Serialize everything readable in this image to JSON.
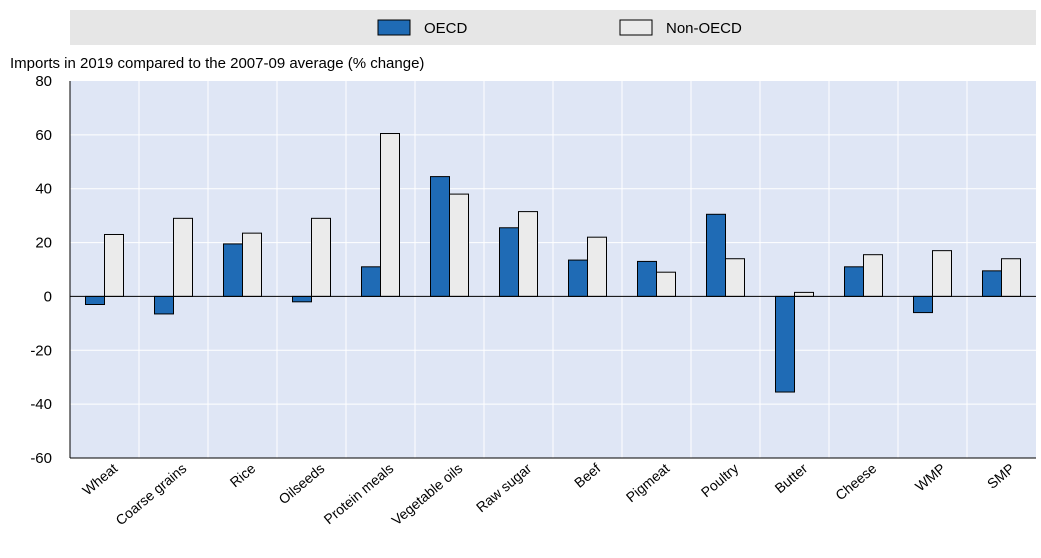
{
  "chart_data": {
    "type": "bar",
    "title": "",
    "ylabel": "Imports in 2019 compared to the 2007-09 average (% change)",
    "xlabel": "",
    "ylim": [
      -60,
      80
    ],
    "yticks": [
      -60,
      -40,
      -20,
      0,
      20,
      40,
      60,
      80
    ],
    "grid": true,
    "legend_position": "top-center",
    "categories": [
      "Wheat",
      "Coarse grains",
      "Rice",
      "Oilseeds",
      "Protein meals",
      "Vegetable oils",
      "Raw sugar",
      "Beef",
      "Pigmeat",
      "Poultry",
      "Butter",
      "Cheese",
      "WMP",
      "SMP"
    ],
    "series": [
      {
        "name": "OECD",
        "color": "#1f6bb5",
        "values": [
          -3,
          -6.5,
          19.5,
          -2,
          11,
          44.5,
          25.5,
          13.5,
          13,
          30.5,
          -35.5,
          11,
          -6,
          9.5
        ]
      },
      {
        "name": "Non-OECD",
        "color": "#ebebeb",
        "values": [
          23,
          29,
          23.5,
          29,
          60.5,
          38,
          31.5,
          22,
          9,
          14,
          1.5,
          15.5,
          17,
          14
        ]
      }
    ],
    "colors": {
      "plot_background": "#dfe6f5",
      "grid": "#ffffff",
      "legend_background": "#e6e6e6"
    }
  }
}
